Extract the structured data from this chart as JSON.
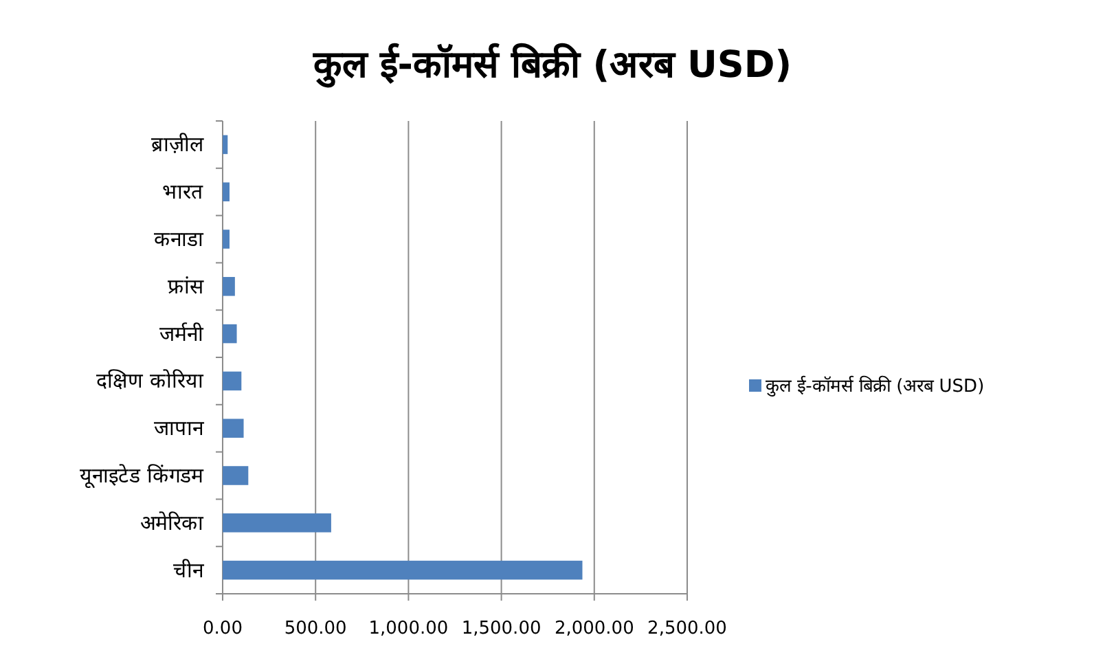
{
  "chart_data": {
    "type": "bar",
    "orientation": "horizontal",
    "title": "कुल ई-कॉमर्स बिक्री (अरब USD)",
    "categories": [
      "ब्राज़ील",
      "भारत",
      "कनाडा",
      "फ्रांस",
      "जर्मनी",
      "दक्षिण कोरिया",
      "जापान",
      "यूनाइटेड किंगडम",
      "अमेरिका",
      "चीन"
    ],
    "series": [
      {
        "name": "कुल ई-कॉमर्स बिक्री (अरब USD)",
        "color": "#4f81bd",
        "values": [
          27,
          37,
          37,
          66,
          76,
          101,
          113,
          138,
          584,
          1936
        ]
      }
    ],
    "xlim": [
      0,
      2500
    ],
    "xticks": [
      {
        "value": 0,
        "label": "0.00"
      },
      {
        "value": 500,
        "label": "500.00"
      },
      {
        "value": 1000,
        "label": "1,000.00"
      },
      {
        "value": 1500,
        "label": "1,500.00"
      },
      {
        "value": 2000,
        "label": "2,000.00"
      },
      {
        "value": 2500,
        "label": "2,500.00"
      }
    ],
    "grid": "x",
    "legend": "right"
  }
}
